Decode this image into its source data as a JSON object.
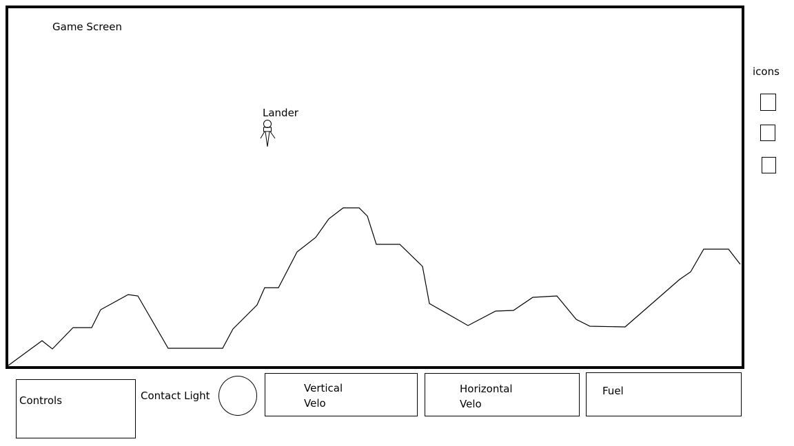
{
  "game_screen": {
    "label": "Game Screen",
    "lander_label": "Lander"
  },
  "icons": {
    "label": "icons",
    "items": [
      "icon-slot-1",
      "icon-slot-2",
      "icon-slot-3"
    ]
  },
  "bottom_bar": {
    "controls_label": "Controls",
    "contact_light_label": "Contact Light",
    "vertical_velo_label": "Vertical\nVelo",
    "horizontal_velo_label": "Horizontal\nVelo",
    "fuel_label": "Fuel"
  },
  "colors": {
    "line": "#000000",
    "background": "#ffffff"
  }
}
